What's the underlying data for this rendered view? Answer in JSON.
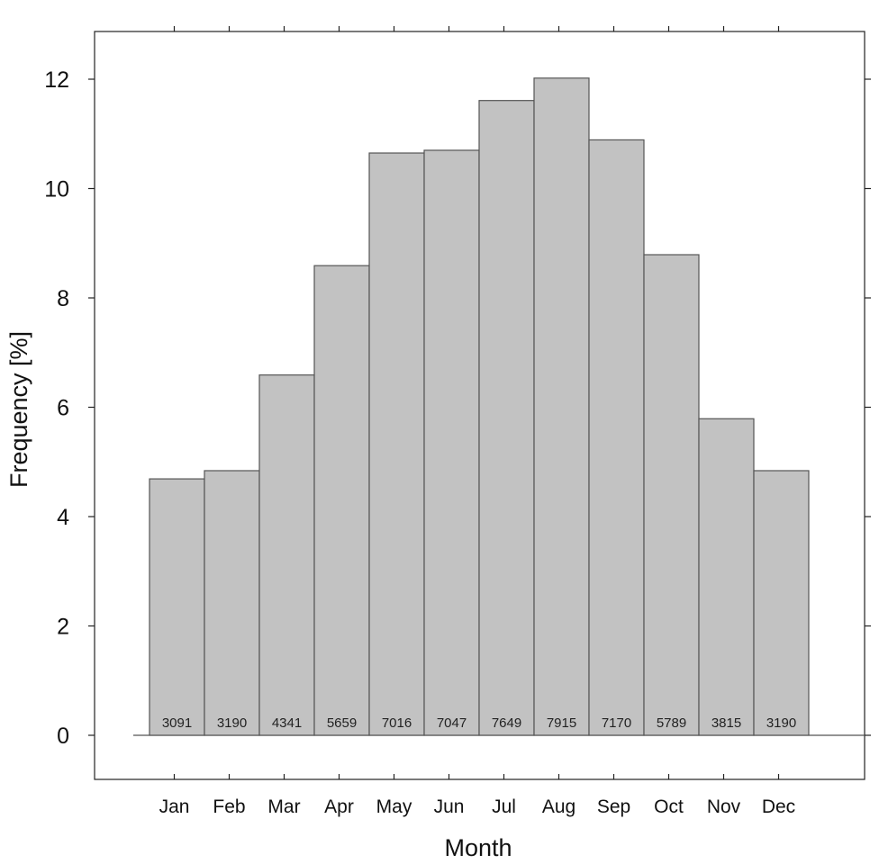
{
  "chart_data": {
    "type": "bar",
    "categories": [
      "Jan",
      "Feb",
      "Mar",
      "Apr",
      "May",
      "Jun",
      "Jul",
      "Aug",
      "Sep",
      "Oct",
      "Nov",
      "Dec"
    ],
    "values": [
      4.69,
      4.84,
      6.59,
      8.59,
      10.65,
      10.7,
      11.61,
      12.02,
      10.89,
      8.79,
      5.79,
      4.84
    ],
    "counts": [
      "3091",
      "3190",
      "4341",
      "5659",
      "7016",
      "7047",
      "7649",
      "7915",
      "7170",
      "5789",
      "3815",
      "3190"
    ],
    "yticks": [
      0,
      2,
      4,
      6,
      8,
      10,
      12
    ],
    "ylim": [
      -0.8,
      12.9
    ],
    "xlabel": "Month",
    "ylabel": "Frequency [%]",
    "grid": false,
    "bar_color": "#c2c2c2",
    "bar_edge_color": "#555555"
  }
}
